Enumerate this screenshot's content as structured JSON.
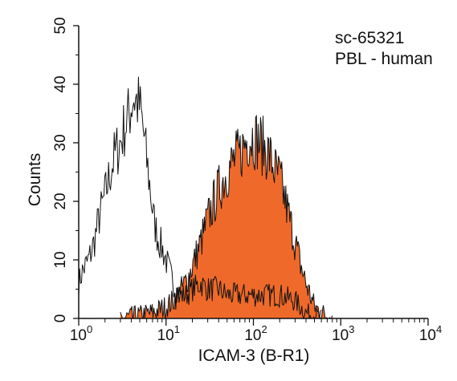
{
  "chart_data": {
    "type": "area",
    "xlabel": "ICAM-3 (B-R1)",
    "ylabel": "Counts",
    "x_scale": "log",
    "xlim": [
      1,
      10000
    ],
    "ylim": [
      0,
      50
    ],
    "x_ticks": [
      {
        "value": 1,
        "base": "10",
        "exp": "0"
      },
      {
        "value": 10,
        "base": "10",
        "exp": "1"
      },
      {
        "value": 100,
        "base": "10",
        "exp": "2"
      },
      {
        "value": 1000,
        "base": "10",
        "exp": "3"
      },
      {
        "value": 10000,
        "base": "10",
        "exp": "4"
      }
    ],
    "y_ticks": [
      "0",
      "10",
      "20",
      "30",
      "40",
      "50"
    ],
    "y_tick_values": [
      0,
      10,
      20,
      30,
      40,
      50
    ],
    "grid": false,
    "annotations": [
      "sc-65321",
      "PBL - human"
    ],
    "colors": {
      "stained_fill": "#ef6a2a",
      "line": "#111111",
      "axis": "#111111"
    },
    "series": [
      {
        "style": "outline",
        "x": [
          1.0,
          1.1,
          1.2,
          1.3,
          1.5,
          1.7,
          2.0,
          2.3,
          2.6,
          3.0,
          3.4,
          3.8,
          4.2,
          4.6,
          5.0,
          5.5,
          6.0,
          6.6,
          7.2,
          8.0,
          9.0,
          10,
          11.5,
          13,
          15,
          17,
          20,
          25,
          30,
          40,
          50,
          70,
          100,
          150,
          200,
          300,
          400,
          500,
          600
        ],
        "y": [
          6,
          8,
          9,
          10,
          13,
          17,
          21,
          25,
          28,
          30,
          33,
          35,
          38,
          37,
          36,
          32,
          27,
          22,
          17,
          14,
          12,
          10,
          7,
          5,
          4,
          4,
          5,
          6,
          5,
          5,
          4,
          4,
          4,
          4,
          4,
          3,
          1,
          0.5,
          0
        ]
      },
      {
        "style": "filled",
        "x": [
          3,
          5,
          7,
          10,
          12,
          15,
          18,
          20,
          25,
          30,
          40,
          50,
          60,
          70,
          80,
          90,
          100,
          120,
          150,
          180,
          200,
          250,
          300,
          350,
          400,
          500,
          600,
          800
        ],
        "y": [
          0,
          0.5,
          1,
          2,
          3,
          5,
          7,
          9,
          13,
          17,
          22,
          25,
          27,
          28,
          30,
          31,
          31,
          30,
          28,
          25,
          24,
          18,
          13,
          9,
          6,
          2,
          1,
          0
        ]
      }
    ]
  }
}
